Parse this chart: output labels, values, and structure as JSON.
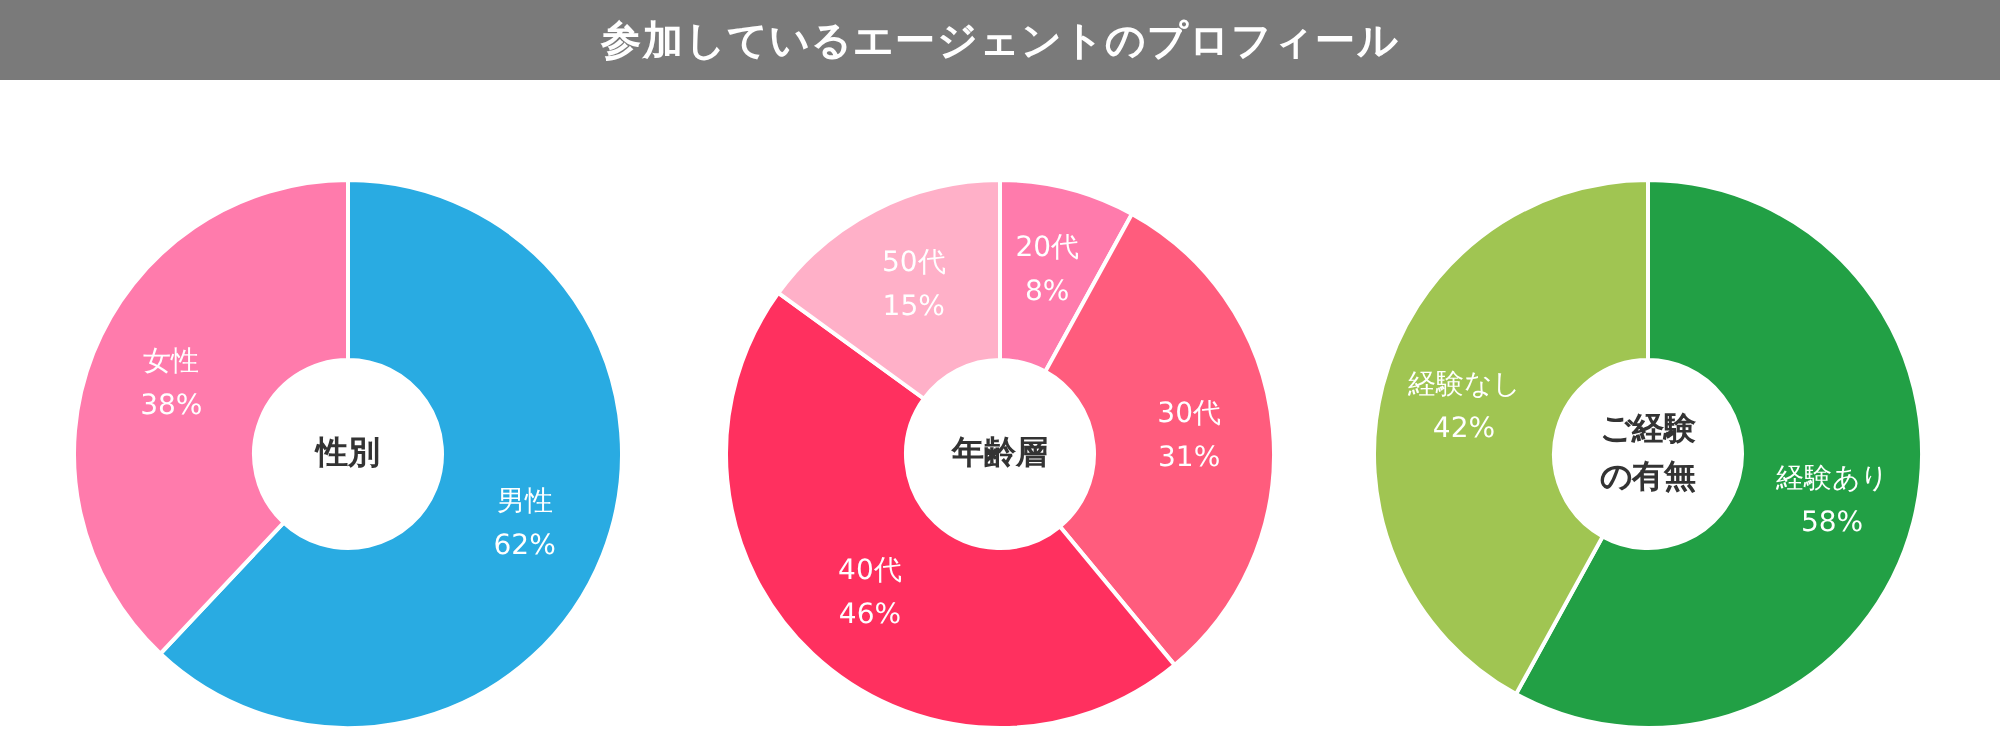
{
  "chart_data": [
    {
      "type": "other",
      "title": "参加しているエージェントのプロフィール"
    },
    {
      "type": "donut",
      "title": "性別",
      "categories": [
        "男性",
        "女性"
      ],
      "values": [
        62,
        38
      ],
      "value_labels": [
        "62%",
        "38%"
      ],
      "colors": [
        "#29abe2",
        "#ff7bac"
      ]
    },
    {
      "type": "donut",
      "title": "年齢層",
      "categories": [
        "20代",
        "30代",
        "40代",
        "50代"
      ],
      "values": [
        8,
        31,
        46,
        15
      ],
      "value_labels": [
        "8%",
        "31%",
        "46%",
        "15%"
      ],
      "colors": [
        "#ff7bac",
        "#ff5c7d",
        "#ff305f",
        "#ffb0c8"
      ]
    },
    {
      "type": "donut",
      "title": "ご経験の有無",
      "categories": [
        "経験あり",
        "経験なし"
      ],
      "values": [
        58,
        42
      ],
      "value_labels": [
        "58%",
        "42%"
      ],
      "colors": [
        "#22a045",
        "#a0c552"
      ]
    }
  ]
}
